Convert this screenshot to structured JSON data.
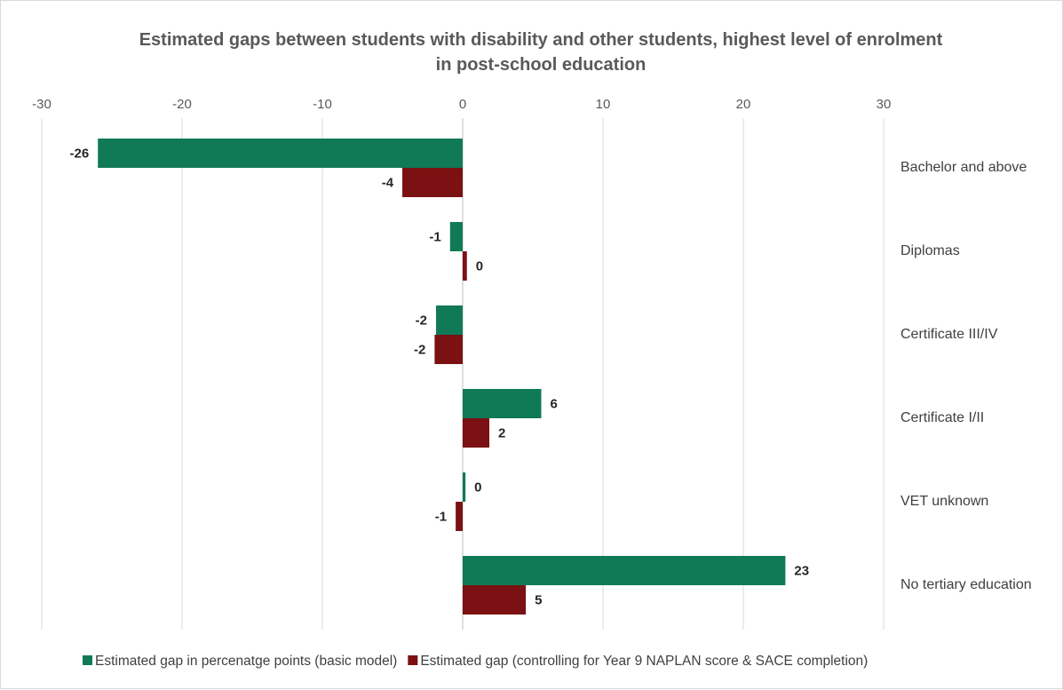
{
  "chart_data": {
    "type": "bar",
    "orientation": "horizontal",
    "title": "Estimated gaps between students with disability and other students, highest level of enrolment in post-school education",
    "title_lines": [
      "Estimated gaps between students with disability and other students, highest level of enrolment",
      "in post-school education"
    ],
    "categories": [
      "Bachelor and above",
      "Diplomas",
      "Certificate III/IV",
      "Certificate I/II",
      "VET unknown",
      "No tertiary education"
    ],
    "series": [
      {
        "name": "Estimated gap in percenatge points (basic model)",
        "color": "#107A56",
        "values": [
          -26,
          -0.9,
          -1.9,
          5.6,
          0.2,
          23
        ],
        "labels": [
          "-26",
          "-1",
          "-2",
          "6",
          "0",
          "23"
        ]
      },
      {
        "name": "Estimated gap (controlling for Year 9 NAPLAN score & SACE completion)",
        "color": "#7B1113",
        "values": [
          -4.3,
          0.3,
          -2,
          1.9,
          -0.5,
          4.5
        ],
        "labels": [
          "-4",
          "0",
          "-2",
          "2",
          "-1",
          "5"
        ]
      }
    ],
    "xlim": [
      -30,
      30
    ],
    "xticks": [
      -30,
      -20,
      -10,
      0,
      10,
      20,
      30
    ],
    "xtick_labels": [
      "-30",
      "-20",
      "-10",
      "0",
      "10",
      "20",
      "30"
    ],
    "x_axis_position": "top",
    "grid": true,
    "legend": "bottom",
    "xlabel": "",
    "ylabel": ""
  }
}
